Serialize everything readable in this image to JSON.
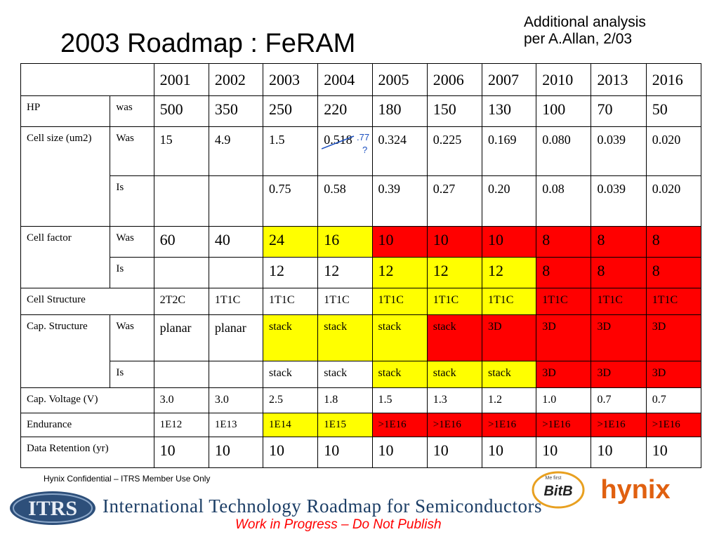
{
  "title": "2003 Roadmap : FeRAM",
  "note": {
    "line1": "Additional analysis",
    "line2": "per A.Allan, 2/03"
  },
  "table": {
    "years": [
      "2001",
      "2002",
      "2003",
      "2004",
      "2005",
      "2006",
      "2007",
      "2010",
      "2013",
      "2016"
    ],
    "hp": {
      "label": "HP",
      "sub": "was",
      "values": [
        "500",
        "350",
        "250",
        "220",
        "180",
        "150",
        "130",
        "100",
        "70",
        "50"
      ]
    },
    "cell_size": {
      "label": "Cell size (um2)",
      "was_label": "Was",
      "was": [
        "15",
        "4.9",
        "1.5",
        "0.518",
        "0.324",
        "0.225",
        "0.169",
        "0.080",
        "0.039",
        "0.020"
      ],
      "is_label": "Is",
      "is": [
        "",
        "",
        "0.75",
        "0.58",
        "0.39",
        "0.27",
        "0.20",
        "0.08",
        "0.039",
        "0.020"
      ]
    },
    "cell_factor": {
      "label": "Cell factor",
      "was_label": "Was",
      "was": [
        "60",
        "40",
        "24",
        "16",
        "10",
        "10",
        "10",
        "8",
        "8",
        "8"
      ],
      "is_label": "Is",
      "is": [
        "",
        "",
        "12",
        "12",
        "12",
        "12",
        "12",
        "8",
        "8",
        "8"
      ]
    },
    "cell_structure": {
      "label": "Cell Structure",
      "values": [
        "2T2C",
        "1T1C",
        "1T1C",
        "1T1C",
        "1T1C",
        "1T1C",
        "1T1C",
        "1T1C",
        "1T1C",
        "1T1C"
      ]
    },
    "cap_structure": {
      "label": "Cap. Structure",
      "was_label": "Was",
      "was": [
        "planar",
        "planar",
        "stack",
        "stack",
        "stack",
        "stack",
        "3D",
        "3D",
        "3D",
        "3D"
      ],
      "is_label": "Is",
      "is": [
        "",
        "",
        "stack",
        "stack",
        "stack",
        "stack",
        "stack",
        "3D",
        "3D",
        "3D"
      ]
    },
    "cap_voltage": {
      "label": "Cap. Voltage (V)",
      "values": [
        "3.0",
        "3.0",
        "2.5",
        "1.8",
        "1.5",
        "1.3",
        "1.2",
        "1.0",
        "0.7",
        "0.7"
      ]
    },
    "endurance": {
      "label": "Endurance",
      "values": [
        "1E12",
        "1E13",
        "1E14",
        "1E15",
        ">1E16",
        ">1E16",
        ">1E16",
        ">1E16",
        ">1E16",
        ">1E16"
      ]
    },
    "retention": {
      "label": "Data Retention (yr)",
      "values": [
        "10",
        "10",
        "10",
        "10",
        "10",
        "10",
        "10",
        "10",
        "10",
        "10"
      ]
    }
  },
  "annotation": {
    "text": ".77",
    "text2": "?"
  },
  "colors": {
    "yellow": "#ffff00",
    "red": "#ff0000",
    "annotation": "#1a4fc0"
  },
  "footer": {
    "confidential": "Hynix Confidential – ITRS Member Use Only",
    "roadmap": "International Technology Roadmap for Semiconductors",
    "wip": "Work in Progress – Do Not Publish",
    "itrs_logo_text": "ITRS",
    "hynix_logo_text": "hynix",
    "bit_logo_text": "BitB",
    "bit_logo_sub": "Me first"
  }
}
